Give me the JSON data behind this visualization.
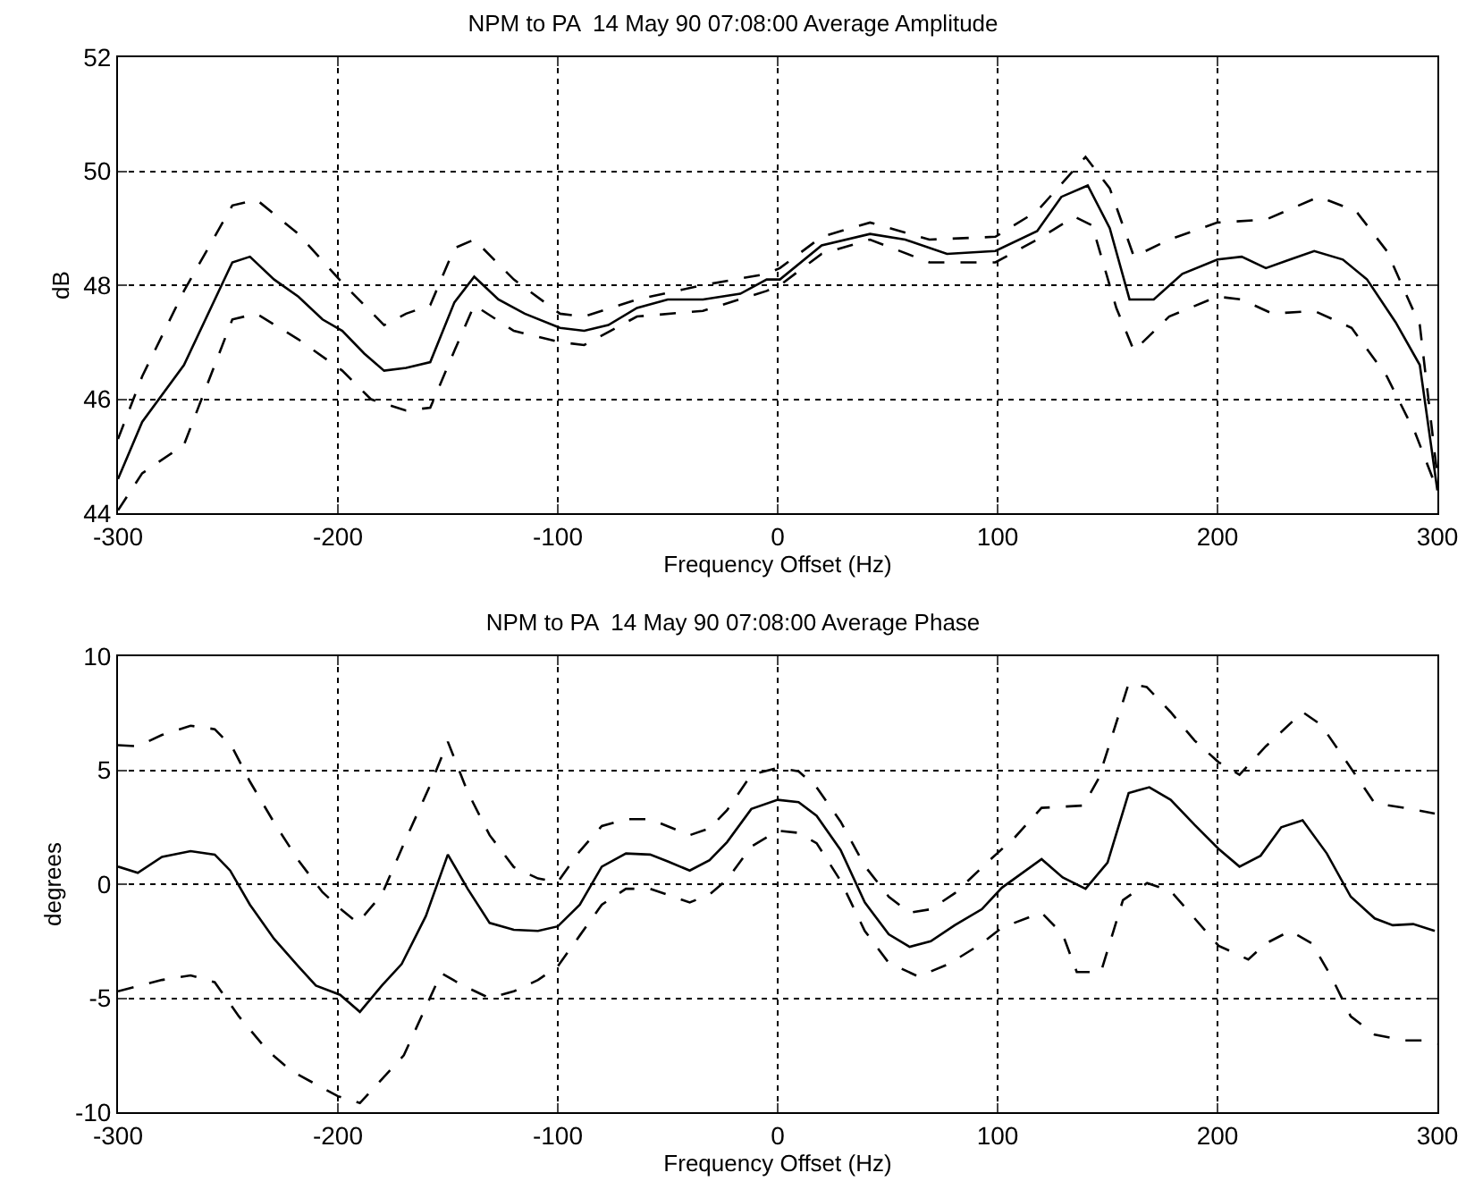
{
  "chart_data": [
    {
      "type": "line",
      "title": "NPM to PA  14 May 90 07:08:00 Average Amplitude",
      "xlabel": "Frequency Offset (Hz)",
      "ylabel": "dB",
      "xlim": [
        -300,
        300
      ],
      "xticks": [
        -300,
        -200,
        -100,
        0,
        100,
        200,
        300
      ],
      "ylim": [
        44,
        52
      ],
      "yticks": [
        44,
        46,
        48,
        50,
        52
      ],
      "grid": true,
      "marker": "none",
      "series": [
        {
          "color": "#000000",
          "line_style": "solid",
          "x": [
            -300,
            -289,
            -270,
            -248,
            -240,
            -229,
            -218,
            -207,
            -198,
            -188,
            -179,
            -169,
            -158,
            -147,
            -138,
            -127,
            -115,
            -99,
            -88,
            -77,
            -64,
            -50,
            -34,
            -17,
            -5,
            1,
            20,
            42,
            58,
            77,
            99,
            118,
            129,
            141,
            151,
            160,
            171,
            184,
            200,
            211,
            222,
            233,
            244,
            257,
            268,
            281,
            292,
            300
          ],
          "values": [
            44.6,
            45.6,
            46.6,
            48.4,
            48.5,
            48.1,
            47.8,
            47.4,
            47.2,
            46.8,
            46.5,
            46.55,
            46.65,
            47.7,
            48.15,
            47.75,
            47.5,
            47.25,
            47.2,
            47.3,
            47.6,
            47.75,
            47.75,
            47.85,
            48.1,
            48.1,
            48.7,
            48.9,
            48.8,
            48.55,
            48.6,
            48.95,
            49.55,
            49.75,
            49.0,
            47.75,
            47.75,
            48.2,
            48.45,
            48.5,
            48.3,
            48.45,
            48.6,
            48.45,
            48.1,
            47.35,
            46.6,
            44.4
          ]
        },
        {
          "color": "#000000",
          "line_style": "dashed",
          "x": [
            -300,
            -289,
            -270,
            -248,
            -237,
            -218,
            -197,
            -179,
            -169,
            -158,
            -147,
            -138,
            -120,
            -99,
            -88,
            -64,
            -34,
            -5,
            1,
            20,
            42,
            69,
            99,
            118,
            140,
            151,
            162,
            178,
            200,
            222,
            246,
            263,
            277,
            292,
            300
          ],
          "values": [
            45.3,
            46.4,
            47.9,
            49.4,
            49.5,
            48.9,
            48.0,
            47.3,
            47.5,
            47.65,
            48.65,
            48.8,
            48.1,
            47.5,
            47.45,
            47.75,
            48.0,
            48.2,
            48.3,
            48.85,
            49.1,
            48.8,
            48.85,
            49.3,
            50.25,
            49.7,
            48.5,
            48.8,
            49.1,
            49.15,
            49.55,
            49.3,
            48.6,
            47.3,
            44.65
          ]
        },
        {
          "color": "#000000",
          "line_style": "dashed",
          "x": [
            -300,
            -289,
            -270,
            -248,
            -237,
            -218,
            -198,
            -185,
            -169,
            -158,
            -147,
            -138,
            -120,
            -99,
            -88,
            -64,
            -34,
            -5,
            1,
            20,
            42,
            69,
            99,
            118,
            135,
            143,
            154,
            162,
            178,
            200,
            211,
            225,
            244,
            261,
            277,
            290,
            300
          ],
          "values": [
            44.05,
            44.7,
            45.2,
            47.4,
            47.5,
            47.05,
            46.5,
            46.0,
            45.8,
            45.85,
            46.85,
            47.65,
            47.2,
            47.0,
            46.95,
            47.45,
            47.55,
            47.9,
            48.0,
            48.55,
            48.8,
            48.4,
            48.4,
            48.8,
            49.2,
            49.05,
            47.6,
            46.85,
            47.45,
            47.8,
            47.75,
            47.5,
            47.55,
            47.25,
            46.4,
            45.4,
            44.4
          ]
        }
      ]
    },
    {
      "type": "line",
      "title": "NPM to PA  14 May 90 07:08:00 Average Phase",
      "xlabel": "Frequency Offset (Hz)",
      "ylabel": "degrees",
      "xlim": [
        -300,
        300
      ],
      "xticks": [
        -300,
        -200,
        -100,
        0,
        100,
        200,
        300
      ],
      "ylim": [
        -10,
        10
      ],
      "yticks": [
        -10,
        -5,
        0,
        5,
        10
      ],
      "grid": true,
      "marker": "none",
      "series": [
        {
          "color": "#000000",
          "line_style": "solid",
          "x": [
            -300,
            -291,
            -280,
            -267,
            -256,
            -249,
            -240,
            -229,
            -218,
            -210,
            -199,
            -190,
            -180,
            -171,
            -160,
            -150,
            -141,
            -131,
            -120,
            -109,
            -100,
            -90,
            -80,
            -69,
            -58,
            -50,
            -40,
            -31,
            -23,
            -12,
            0,
            9.5,
            17.7,
            28.6,
            39.6,
            50.5,
            60,
            69.6,
            80.5,
            92.8,
            102,
            120,
            129.6,
            140,
            150,
            159.6,
            169,
            178.7,
            189.6,
            200.5,
            210,
            219.6,
            229,
            238.7,
            249.7,
            260.6,
            271.5,
            279.7,
            289,
            298.8
          ],
          "values": [
            0.77,
            0.5,
            1.2,
            1.45,
            1.3,
            0.6,
            -0.9,
            -2.4,
            -3.6,
            -4.45,
            -4.85,
            -5.6,
            -4.45,
            -3.5,
            -1.4,
            1.3,
            -0.2,
            -1.7,
            -2.0,
            -2.05,
            -1.85,
            -0.9,
            0.77,
            1.35,
            1.3,
            1.0,
            0.6,
            1.05,
            1.85,
            3.3,
            3.7,
            3.6,
            3.0,
            1.5,
            -0.8,
            -2.2,
            -2.75,
            -2.5,
            -1.8,
            -1.1,
            -0.15,
            1.1,
            0.3,
            -0.2,
            0.95,
            4.0,
            4.25,
            3.7,
            2.6,
            1.55,
            0.77,
            1.25,
            2.5,
            2.8,
            1.35,
            -0.55,
            -1.5,
            -1.8,
            -1.75,
            -2.05
          ]
        },
        {
          "color": "#000000",
          "line_style": "dashed",
          "x": [
            -300,
            -291,
            -280,
            -267,
            -256,
            -248,
            -240,
            -229,
            -218,
            -207,
            -198,
            -191,
            -180,
            -169,
            -158,
            -150,
            -141,
            -131,
            -120,
            -109,
            -100,
            -90,
            -80,
            -69,
            -58,
            -40,
            -31,
            -23,
            -12,
            0,
            9.5,
            17.7,
            28.6,
            39.6,
            50.5,
            60,
            69.6,
            80.5,
            96.9,
            107.8,
            120,
            139,
            146,
            159.6,
            167.8,
            178.7,
            189.6,
            200.5,
            210,
            222,
            238.7,
            247,
            257.8,
            271.5,
            288,
            298.8
          ],
          "values": [
            6.1,
            6.05,
            6.55,
            6.95,
            6.8,
            6.0,
            4.5,
            2.7,
            1.05,
            -0.35,
            -1.15,
            -1.7,
            -0.45,
            2.0,
            4.35,
            6.25,
            4.05,
            2.15,
            0.75,
            0.25,
            0.1,
            1.45,
            2.55,
            2.85,
            2.85,
            2.15,
            2.45,
            3.25,
            4.8,
            5.1,
            4.95,
            4.25,
            2.75,
            0.8,
            -0.55,
            -1.25,
            -1.1,
            -0.4,
            1.1,
            2.05,
            3.35,
            3.45,
            4.65,
            8.8,
            8.65,
            7.55,
            6.3,
            5.35,
            4.8,
            6.05,
            7.55,
            7.0,
            5.5,
            3.55,
            3.3,
            3.1
          ]
        },
        {
          "color": "#000000",
          "line_style": "dashed",
          "x": [
            -300,
            -280,
            -267,
            -256,
            -245,
            -232,
            -221,
            -200,
            -190,
            -170,
            -153,
            -143,
            -131,
            -120,
            -109,
            -100,
            -90,
            -80,
            -69,
            -58,
            -40,
            -31,
            -23,
            -12,
            0,
            9.5,
            17.7,
            28.6,
            39.6,
            50.5,
            64,
            77.8,
            92.8,
            102,
            120,
            129.6,
            136,
            147,
            157,
            168,
            178.7,
            189.6,
            200.5,
            214,
            222,
            233,
            243,
            252,
            260.6,
            271.5,
            285,
            293,
            300
          ],
          "values": [
            -4.7,
            -4.2,
            -4.0,
            -4.3,
            -5.8,
            -7.3,
            -8.2,
            -9.3,
            -9.6,
            -7.5,
            -3.9,
            -4.45,
            -5.0,
            -4.7,
            -4.2,
            -3.6,
            -2.25,
            -0.9,
            -0.2,
            -0.2,
            -0.8,
            -0.45,
            0.2,
            1.65,
            2.35,
            2.25,
            1.8,
            0.15,
            -2.05,
            -3.45,
            -4.05,
            -3.5,
            -2.6,
            -1.9,
            -1.25,
            -2.2,
            -3.85,
            -3.85,
            -0.7,
            0.05,
            -0.3,
            -1.5,
            -2.7,
            -3.3,
            -2.6,
            -2.05,
            -2.6,
            -4.1,
            -5.8,
            -6.6,
            -6.85,
            -6.85,
            -7.0
          ]
        }
      ]
    }
  ]
}
